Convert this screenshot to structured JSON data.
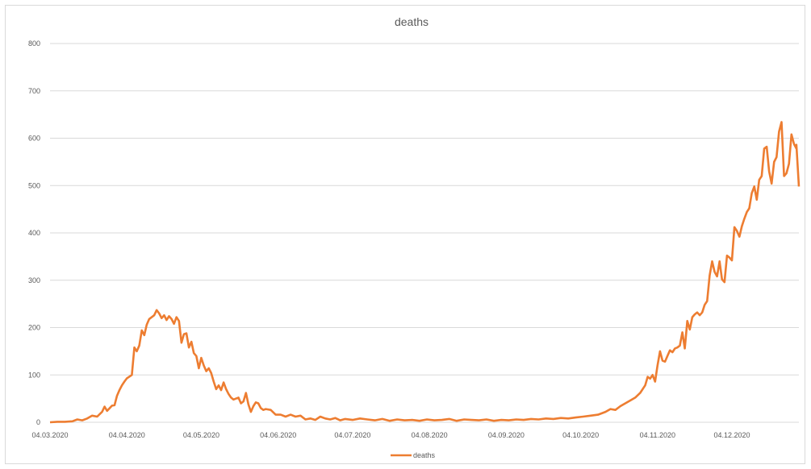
{
  "chart_data": {
    "type": "line",
    "title": "deaths",
    "xlabel": "",
    "ylabel": "",
    "ylim": [
      0,
      800
    ],
    "yticks": [
      0,
      100,
      200,
      300,
      400,
      500,
      600,
      700,
      800
    ],
    "xticks": [
      "04.03.2020",
      "04.04.2020",
      "04.05.2020",
      "04.06.2020",
      "04.07.2020",
      "04.08.2020",
      "04.09.2020",
      "04.10.2020",
      "04.11.2020",
      "04.12.2020"
    ],
    "xrange": [
      "04.03.2020",
      "31.12.2020"
    ],
    "grid": true,
    "legend": "bottom",
    "color": "#ED7D31",
    "series": [
      {
        "name": "deaths",
        "points": [
          [
            "04.03.2020",
            0
          ],
          [
            "07.03.2020",
            1
          ],
          [
            "10.03.2020",
            1
          ],
          [
            "13.03.2020",
            2
          ],
          [
            "15.03.2020",
            6
          ],
          [
            "17.03.2020",
            4
          ],
          [
            "19.03.2020",
            8
          ],
          [
            "21.03.2020",
            14
          ],
          [
            "23.03.2020",
            12
          ],
          [
            "25.03.2020",
            22
          ],
          [
            "26.03.2020",
            33
          ],
          [
            "27.03.2020",
            24
          ],
          [
            "29.03.2020",
            35
          ],
          [
            "30.03.2020",
            36
          ],
          [
            "31.03.2020",
            56
          ],
          [
            "01.04.2020",
            68
          ],
          [
            "02.04.2020",
            78
          ],
          [
            "03.04.2020",
            86
          ],
          [
            "04.04.2020",
            93
          ],
          [
            "06.04.2020",
            100
          ],
          [
            "07.04.2020",
            158
          ],
          [
            "08.04.2020",
            150
          ],
          [
            "09.04.2020",
            162
          ],
          [
            "10.04.2020",
            194
          ],
          [
            "11.04.2020",
            184
          ],
          [
            "12.04.2020",
            206
          ],
          [
            "13.04.2020",
            218
          ],
          [
            "14.04.2020",
            222
          ],
          [
            "15.04.2020",
            226
          ],
          [
            "16.04.2020",
            237
          ],
          [
            "17.04.2020",
            230
          ],
          [
            "18.04.2020",
            220
          ],
          [
            "19.04.2020",
            226
          ],
          [
            "20.04.2020",
            216
          ],
          [
            "21.04.2020",
            224
          ],
          [
            "22.04.2020",
            218
          ],
          [
            "23.04.2020",
            208
          ],
          [
            "24.04.2020",
            222
          ],
          [
            "25.04.2020",
            214
          ],
          [
            "26.04.2020",
            168
          ],
          [
            "27.04.2020",
            186
          ],
          [
            "28.04.2020",
            188
          ],
          [
            "29.04.2020",
            158
          ],
          [
            "30.04.2020",
            170
          ],
          [
            "01.05.2020",
            146
          ],
          [
            "02.05.2020",
            140
          ],
          [
            "03.05.2020",
            114
          ],
          [
            "04.05.2020",
            136
          ],
          [
            "05.05.2020",
            120
          ],
          [
            "06.05.2020",
            108
          ],
          [
            "07.05.2020",
            114
          ],
          [
            "08.05.2020",
            104
          ],
          [
            "09.05.2020",
            86
          ],
          [
            "10.05.2020",
            70
          ],
          [
            "11.05.2020",
            78
          ],
          [
            "12.05.2020",
            68
          ],
          [
            "13.05.2020",
            84
          ],
          [
            "14.05.2020",
            70
          ],
          [
            "15.05.2020",
            60
          ],
          [
            "16.05.2020",
            52
          ],
          [
            "17.05.2020",
            48
          ],
          [
            "18.05.2020",
            50
          ],
          [
            "19.05.2020",
            52
          ],
          [
            "20.05.2020",
            40
          ],
          [
            "21.05.2020",
            44
          ],
          [
            "22.05.2020",
            62
          ],
          [
            "23.05.2020",
            38
          ],
          [
            "24.05.2020",
            22
          ],
          [
            "25.05.2020",
            34
          ],
          [
            "26.05.2020",
            42
          ],
          [
            "27.05.2020",
            40
          ],
          [
            "28.05.2020",
            30
          ],
          [
            "29.05.2020",
            26
          ],
          [
            "30.05.2020",
            28
          ],
          [
            "01.06.2020",
            26
          ],
          [
            "03.06.2020",
            16
          ],
          [
            "05.06.2020",
            16
          ],
          [
            "07.06.2020",
            12
          ],
          [
            "09.06.2020",
            16
          ],
          [
            "11.06.2020",
            12
          ],
          [
            "13.06.2020",
            14
          ],
          [
            "15.06.2020",
            6
          ],
          [
            "17.06.2020",
            8
          ],
          [
            "19.06.2020",
            5
          ],
          [
            "21.06.2020",
            12
          ],
          [
            "23.06.2020",
            8
          ],
          [
            "25.06.2020",
            6
          ],
          [
            "27.06.2020",
            9
          ],
          [
            "29.06.2020",
            4
          ],
          [
            "01.07.2020",
            7
          ],
          [
            "04.07.2020",
            5
          ],
          [
            "07.07.2020",
            8
          ],
          [
            "10.07.2020",
            6
          ],
          [
            "13.07.2020",
            4
          ],
          [
            "16.07.2020",
            7
          ],
          [
            "19.07.2020",
            3
          ],
          [
            "22.07.2020",
            6
          ],
          [
            "25.07.2020",
            4
          ],
          [
            "28.07.2020",
            5
          ],
          [
            "31.07.2020",
            3
          ],
          [
            "03.08.2020",
            6
          ],
          [
            "06.08.2020",
            4
          ],
          [
            "09.08.2020",
            5
          ],
          [
            "12.08.2020",
            7
          ],
          [
            "15.08.2020",
            3
          ],
          [
            "18.08.2020",
            6
          ],
          [
            "21.08.2020",
            5
          ],
          [
            "24.08.2020",
            4
          ],
          [
            "27.08.2020",
            6
          ],
          [
            "30.08.2020",
            3
          ],
          [
            "02.09.2020",
            5
          ],
          [
            "05.09.2020",
            4
          ],
          [
            "08.09.2020",
            6
          ],
          [
            "11.09.2020",
            5
          ],
          [
            "14.09.2020",
            7
          ],
          [
            "17.09.2020",
            6
          ],
          [
            "20.09.2020",
            8
          ],
          [
            "23.09.2020",
            7
          ],
          [
            "26.09.2020",
            9
          ],
          [
            "29.09.2020",
            8
          ],
          [
            "02.10.2020",
            10
          ],
          [
            "05.10.2020",
            12
          ],
          [
            "08.10.2020",
            14
          ],
          [
            "11.10.2020",
            16
          ],
          [
            "14.10.2020",
            22
          ],
          [
            "16.10.2020",
            28
          ],
          [
            "18.10.2020",
            26
          ],
          [
            "20.10.2020",
            34
          ],
          [
            "22.10.2020",
            40
          ],
          [
            "24.10.2020",
            46
          ],
          [
            "26.10.2020",
            52
          ],
          [
            "28.10.2020",
            62
          ],
          [
            "30.10.2020",
            78
          ],
          [
            "31.10.2020",
            96
          ],
          [
            "01.11.2020",
            92
          ],
          [
            "02.11.2020",
            100
          ],
          [
            "03.11.2020",
            86
          ],
          [
            "04.11.2020",
            120
          ],
          [
            "05.11.2020",
            150
          ],
          [
            "06.11.2020",
            130
          ],
          [
            "07.11.2020",
            128
          ],
          [
            "08.11.2020",
            140
          ],
          [
            "09.11.2020",
            152
          ],
          [
            "10.11.2020",
            148
          ],
          [
            "11.11.2020",
            156
          ],
          [
            "12.11.2020",
            158
          ],
          [
            "13.11.2020",
            162
          ],
          [
            "14.11.2020",
            190
          ],
          [
            "15.11.2020",
            156
          ],
          [
            "16.11.2020",
            214
          ],
          [
            "17.11.2020",
            196
          ],
          [
            "18.11.2020",
            222
          ],
          [
            "19.11.2020",
            228
          ],
          [
            "20.11.2020",
            232
          ],
          [
            "21.11.2020",
            226
          ],
          [
            "22.11.2020",
            232
          ],
          [
            "23.11.2020",
            248
          ],
          [
            "24.11.2020",
            256
          ],
          [
            "25.11.2020",
            310
          ],
          [
            "26.11.2020",
            340
          ],
          [
            "27.11.2020",
            318
          ],
          [
            "28.11.2020",
            308
          ],
          [
            "29.11.2020",
            340
          ],
          [
            "30.11.2020",
            302
          ],
          [
            "01.12.2020",
            296
          ],
          [
            "02.12.2020",
            352
          ],
          [
            "03.12.2020",
            348
          ],
          [
            "04.12.2020",
            342
          ],
          [
            "05.12.2020",
            412
          ],
          [
            "06.12.2020",
            404
          ],
          [
            "07.12.2020",
            392
          ],
          [
            "08.12.2020",
            414
          ],
          [
            "09.12.2020",
            430
          ],
          [
            "10.12.2020",
            444
          ],
          [
            "11.12.2020",
            452
          ],
          [
            "12.12.2020",
            484
          ],
          [
            "13.12.2020",
            498
          ],
          [
            "14.12.2020",
            470
          ],
          [
            "15.12.2020",
            512
          ],
          [
            "16.12.2020",
            520
          ],
          [
            "17.12.2020",
            578
          ],
          [
            "18.12.2020",
            582
          ],
          [
            "19.12.2020",
            530
          ],
          [
            "20.12.2020",
            504
          ],
          [
            "21.12.2020",
            550
          ],
          [
            "22.12.2020",
            560
          ],
          [
            "23.12.2020",
            614
          ],
          [
            "24.12.2020",
            634
          ],
          [
            "25.12.2020",
            520
          ],
          [
            "26.12.2020",
            526
          ],
          [
            "27.12.2020",
            546
          ],
          [
            "28.12.2020",
            608
          ],
          [
            "29.12.2020",
            588
          ],
          [
            "30.12.2020",
            578
          ],
          [
            "30.12.2020",
            586
          ],
          [
            "31.12.2020",
            498
          ]
        ]
      }
    ]
  }
}
